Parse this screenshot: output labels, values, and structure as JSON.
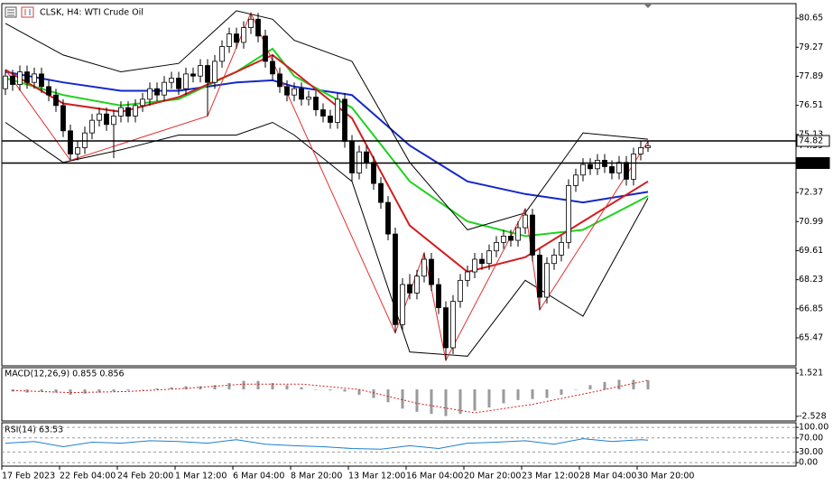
{
  "chart_data": [
    {
      "type": "candlestick",
      "title": "CLSK, H4:  WTI Crude Oil",
      "xlim": [
        -0.5,
        109.5
      ],
      "xticks": [
        {
          "value": 0,
          "label": "17 Feb 2023"
        },
        {
          "value": 8,
          "label": "22 Feb 04:00"
        },
        {
          "value": 16,
          "label": "24 Feb 20:00"
        },
        {
          "value": 24,
          "label": "1 Mar 12:00"
        },
        {
          "value": 32,
          "label": "6 Mar 04:00"
        },
        {
          "value": 40,
          "label": "8 Mar 20:00"
        },
        {
          "value": 48,
          "label": "13 Mar 12:00"
        },
        {
          "value": 56,
          "label": "16 Mar 04:00"
        },
        {
          "value": 64,
          "label": "20 Mar 20:00"
        },
        {
          "value": 72,
          "label": "23 Mar 12:00"
        },
        {
          "value": 80,
          "label": "28 Mar 04:00"
        },
        {
          "value": 88,
          "label": "30 Mar 20:00"
        }
      ],
      "ylim": [
        64.14,
        81.34
      ],
      "yticks": [
        80.65,
        79.27,
        77.89,
        76.51,
        75.13,
        72.37,
        70.99,
        69.61,
        68.23,
        66.85,
        65.47
      ],
      "open": [
        77.3,
        77.9,
        77.5,
        78.1,
        77.6,
        78.0,
        77.4,
        77.0,
        76.5,
        75.3,
        74.2,
        74.5,
        75.2,
        75.8,
        76.1,
        75.6,
        76.0,
        76.4,
        76.0,
        76.5,
        76.8,
        77.3,
        77.0,
        77.6,
        77.8,
        77.3,
        78.0,
        77.9,
        78.4,
        77.6,
        78.6,
        79.3,
        79.9,
        79.5,
        80.2,
        80.6,
        79.8,
        78.6,
        78.0,
        77.4,
        77.0,
        77.3,
        76.8,
        76.9,
        76.3,
        76.0,
        75.7,
        76.8,
        74.8,
        73.3,
        74.3,
        73.8,
        72.8,
        71.9,
        70.4,
        66.1,
        68.0,
        67.6,
        68.4,
        69.2,
        68.0,
        66.9,
        65.0,
        67.2,
        68.2,
        68.6,
        69.2,
        69.0,
        69.6,
        70.0,
        70.3,
        70.1,
        70.7,
        71.3,
        69.4,
        67.4,
        69.0,
        69.4,
        70.0,
        72.7,
        73.2,
        73.7,
        73.5,
        73.9,
        73.6,
        73.3,
        73.8,
        73.0,
        74.2,
        74.5
      ],
      "high": [
        78.2,
        78.2,
        78.4,
        78.4,
        78.3,
        78.3,
        77.7,
        77.3,
        76.8,
        75.6,
        74.8,
        75.5,
        76.1,
        76.4,
        76.4,
        76.3,
        76.7,
        76.7,
        76.8,
        77.1,
        77.6,
        77.6,
        77.9,
        78.1,
        78.1,
        78.3,
        78.3,
        78.7,
        78.7,
        78.9,
        79.6,
        80.2,
        80.2,
        80.5,
        80.9,
        80.9,
        80.1,
        78.9,
        78.3,
        77.7,
        77.6,
        77.6,
        77.2,
        77.2,
        76.6,
        76.3,
        77.1,
        77.1,
        75.1,
        74.6,
        74.6,
        74.1,
        73.1,
        72.2,
        70.7,
        68.3,
        68.5,
        68.7,
        69.5,
        69.5,
        68.3,
        67.2,
        67.5,
        68.5,
        68.9,
        69.5,
        69.5,
        69.9,
        70.3,
        70.6,
        70.6,
        71.0,
        71.6,
        71.6,
        69.7,
        69.3,
        69.7,
        70.3,
        73.0,
        73.5,
        74.0,
        74.0,
        74.2,
        74.2,
        73.9,
        74.1,
        74.1,
        74.5,
        74.8,
        74.8
      ],
      "low": [
        77.0,
        77.2,
        77.2,
        77.3,
        77.3,
        77.1,
        76.7,
        76.2,
        75.0,
        73.9,
        73.9,
        74.2,
        74.9,
        75.5,
        75.3,
        74.0,
        75.7,
        75.7,
        75.7,
        76.2,
        76.5,
        76.7,
        76.7,
        77.3,
        77.0,
        77.0,
        77.6,
        77.6,
        76.0,
        77.3,
        78.3,
        79.0,
        79.2,
        79.2,
        79.9,
        79.5,
        78.3,
        77.7,
        77.1,
        76.7,
        76.7,
        76.5,
        76.5,
        76.0,
        75.7,
        75.4,
        75.4,
        74.5,
        72.9,
        73.0,
        73.5,
        72.5,
        71.6,
        70.1,
        65.7,
        65.8,
        67.3,
        67.3,
        68.1,
        67.7,
        66.6,
        64.4,
        64.7,
        66.9,
        67.9,
        68.3,
        68.7,
        68.7,
        69.3,
        69.7,
        69.8,
        69.8,
        70.4,
        69.1,
        66.8,
        67.1,
        68.7,
        69.1,
        69.7,
        72.4,
        72.9,
        73.2,
        73.2,
        73.3,
        73.0,
        73.0,
        72.7,
        72.7,
        73.9,
        74.3
      ],
      "close": [
        77.9,
        77.5,
        78.1,
        77.6,
        78.0,
        77.4,
        77.0,
        76.5,
        75.3,
        74.2,
        74.5,
        75.2,
        75.8,
        76.1,
        75.6,
        76.0,
        76.4,
        76.0,
        76.5,
        76.8,
        77.3,
        77.0,
        77.6,
        77.8,
        77.3,
        78.0,
        77.9,
        78.4,
        77.6,
        78.6,
        79.3,
        79.9,
        79.5,
        80.2,
        80.6,
        79.8,
        78.6,
        78.0,
        77.4,
        77.0,
        77.3,
        76.8,
        76.9,
        76.3,
        76.0,
        75.7,
        76.8,
        74.8,
        73.3,
        74.3,
        73.8,
        72.8,
        71.9,
        70.4,
        66.1,
        68.0,
        67.6,
        68.4,
        69.2,
        68.0,
        66.9,
        65.0,
        67.2,
        68.2,
        68.6,
        69.2,
        69.0,
        69.6,
        70.0,
        70.3,
        70.1,
        70.7,
        71.3,
        69.4,
        67.4,
        69.0,
        69.4,
        70.0,
        72.7,
        73.2,
        73.7,
        73.5,
        73.9,
        73.6,
        73.3,
        73.8,
        73.0,
        74.2,
        74.5,
        74.59
      ],
      "up_color": "#ffffff",
      "down_color": "#000000",
      "overlays": [
        {
          "color": "#1428c8",
          "width": 2,
          "x": [
            0,
            8,
            16,
            24,
            32,
            37,
            40,
            48,
            56,
            64,
            72,
            80,
            89
          ],
          "values": [
            78.1,
            77.6,
            77.2,
            77.2,
            77.6,
            77.7,
            77.4,
            77.0,
            74.6,
            72.9,
            72.3,
            71.9,
            72.4
          ]
        },
        {
          "color": "#1ed21e",
          "width": 2,
          "x": [
            0,
            8,
            16,
            24,
            32,
            37,
            40,
            48,
            56,
            64,
            72,
            80,
            89
          ],
          "values": [
            77.8,
            77.0,
            76.5,
            76.8,
            78.1,
            79.2,
            77.9,
            76.4,
            72.9,
            71.0,
            70.3,
            70.6,
            72.2
          ]
        },
        {
          "color": "#d21e1e",
          "width": 2,
          "x": [
            0,
            8,
            16,
            24,
            32,
            37,
            40,
            48,
            56,
            64,
            72,
            80,
            89
          ],
          "values": [
            78.2,
            76.6,
            76.2,
            76.9,
            78.1,
            78.9,
            78.1,
            75.9,
            70.8,
            68.6,
            69.3,
            71.0,
            72.9
          ]
        },
        {
          "color": "#000000",
          "width": 1,
          "x": [
            0,
            8,
            16,
            24,
            32,
            37,
            40,
            48,
            56,
            64,
            72,
            80,
            89
          ],
          "values": [
            80.4,
            78.9,
            78.1,
            78.5,
            81.0,
            80.6,
            79.6,
            78.6,
            73.8,
            70.6,
            71.4,
            75.2,
            74.9
          ]
        },
        {
          "color": "#000000",
          "width": 1,
          "x": [
            0,
            8,
            16,
            24,
            32,
            37,
            40,
            48,
            56,
            64,
            72,
            80,
            89
          ],
          "values": [
            75.7,
            73.8,
            74.4,
            75.1,
            75.1,
            75.7,
            75.1,
            72.9,
            64.8,
            64.6,
            68.2,
            66.5,
            72.1
          ]
        },
        {
          "color": "#e03030",
          "width": 1,
          "x": [
            0,
            9,
            28,
            34,
            54,
            58,
            61,
            72,
            74,
            89
          ],
          "values": [
            78.2,
            73.9,
            76.0,
            80.9,
            65.7,
            69.5,
            64.4,
            71.6,
            66.8,
            74.8
          ]
        }
      ],
      "hlines": [
        74.82,
        73.77
      ],
      "last_price": 74.59
    },
    {
      "type": "bar",
      "title": "MACD(12,26,9) 0.855 0.856",
      "x": [
        1,
        3,
        5,
        7,
        9,
        11,
        13,
        15,
        17,
        19,
        21,
        23,
        25,
        27,
        29,
        31,
        33,
        35,
        37,
        39,
        41,
        43,
        45,
        47,
        49,
        51,
        53,
        55,
        57,
        59,
        61,
        63,
        65,
        67,
        69,
        71,
        73,
        75,
        77,
        79,
        81,
        83,
        85,
        87,
        89
      ],
      "values": [
        -0.2,
        -0.3,
        -0.2,
        -0.3,
        -0.5,
        -0.4,
        -0.3,
        -0.2,
        -0.1,
        0.0,
        0.1,
        0.2,
        0.3,
        0.3,
        0.4,
        0.6,
        0.8,
        0.8,
        0.6,
        0.4,
        0.2,
        0.0,
        -0.1,
        -0.2,
        -0.5,
        -0.8,
        -1.2,
        -1.8,
        -2.1,
        -2.3,
        -2.5,
        -2.3,
        -2.0,
        -1.7,
        -1.3,
        -1.0,
        -0.9,
        -0.8,
        -0.5,
        0.0,
        0.4,
        0.7,
        0.9,
        0.9,
        0.855
      ],
      "color": "#9a9a9a",
      "signal": {
        "color": "#d21e1e",
        "x": [
          1,
          9,
          17,
          25,
          33,
          41,
          49,
          57,
          65,
          73,
          81,
          89
        ],
        "values": [
          -0.1,
          -0.3,
          -0.2,
          0.1,
          0.5,
          0.5,
          0.0,
          -1.3,
          -2.2,
          -1.4,
          -0.3,
          0.856
        ]
      },
      "ylim": [
        -2.96,
        2.04
      ],
      "yticks": [
        1.521,
        -2.528
      ]
    },
    {
      "type": "line",
      "title": "RSI(14) 63.53",
      "x": [
        0,
        4,
        8,
        12,
        16,
        20,
        24,
        28,
        32,
        36,
        40,
        44,
        48,
        52,
        56,
        60,
        64,
        68,
        72,
        76,
        80,
        84,
        88,
        89
      ],
      "values": [
        55,
        60,
        45,
        58,
        55,
        62,
        60,
        55,
        65,
        52,
        48,
        45,
        40,
        38,
        48,
        40,
        55,
        58,
        62,
        52,
        68,
        60,
        65,
        63.53
      ],
      "color": "#1e7fd0",
      "ylim": [
        -10,
        113
      ],
      "yticks": [
        {
          "value": 100,
          "label": "100.00"
        },
        {
          "value": 70,
          "label": "70.00"
        },
        {
          "value": 30,
          "label": "30.00"
        },
        {
          "value": 0,
          "label": "0.00"
        }
      ],
      "grid": true
    }
  ]
}
